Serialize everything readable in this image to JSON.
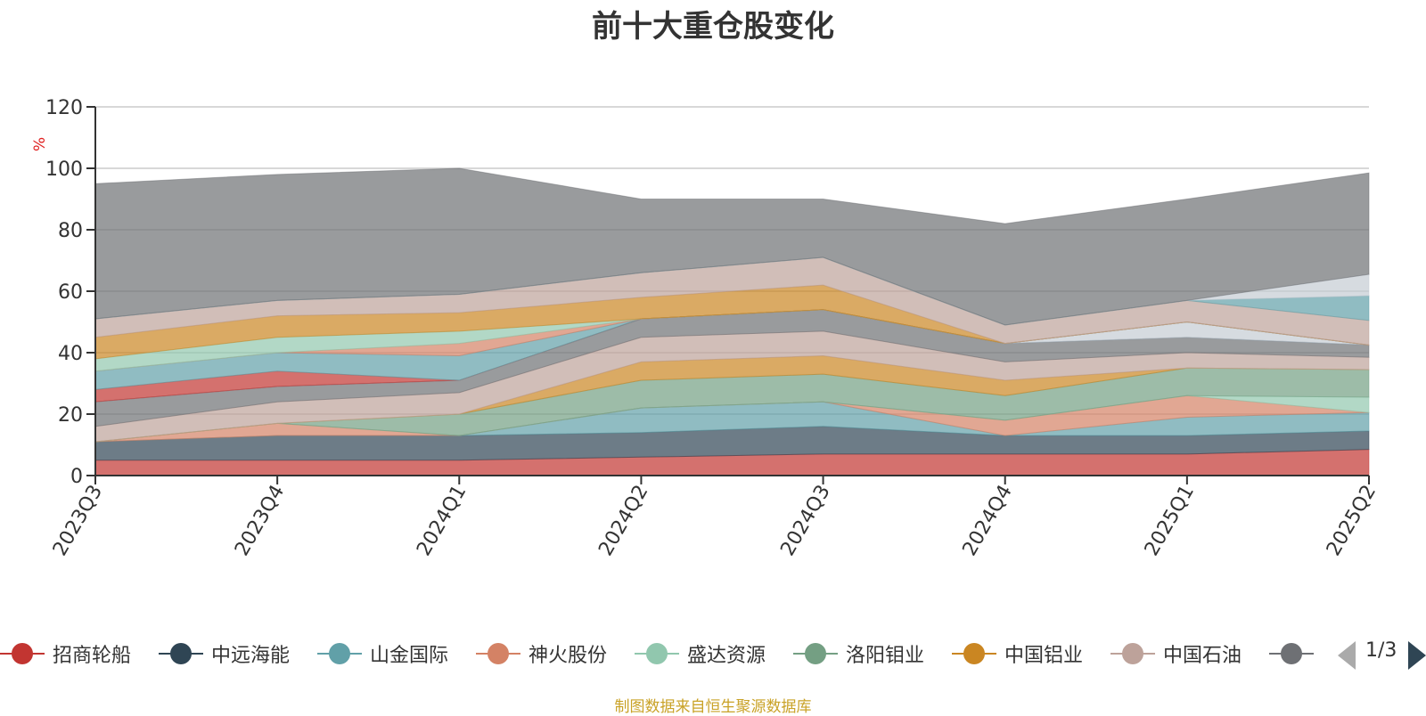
{
  "source_note": "制图数据来自恒生聚源数据库",
  "pager": {
    "text": "1/3"
  },
  "colors": {
    "axis": "#333333",
    "grid": "#cccccc",
    "unit_label": "#e02020"
  },
  "chart_data": {
    "type": "area",
    "stacked": true,
    "title": "前十大重仓股变化",
    "ylabel": "%",
    "ylim": [
      0,
      120
    ],
    "yticks": [
      0,
      20,
      40,
      60,
      80,
      100,
      120
    ],
    "grid": true,
    "legend_position": "bottom",
    "x": [
      "2023Q3",
      "2023Q4",
      "2024Q1",
      "2024Q2",
      "2024Q3",
      "2024Q4",
      "2025Q1",
      "2025Q2"
    ],
    "series": [
      {
        "name": "招商轮船",
        "color": "#c23531",
        "values": [
          5,
          5,
          5,
          6,
          7,
          7,
          7,
          8.5
        ]
      },
      {
        "name": "中远海能",
        "color": "#2f4554",
        "values": [
          6,
          8,
          8,
          8,
          9,
          6,
          6,
          6
        ]
      },
      {
        "name": "山金国际",
        "color": "#61a0a8",
        "values": [
          0,
          0,
          0,
          8,
          8,
          0,
          6,
          6
        ]
      },
      {
        "name": "神火股份",
        "color": "#d48265",
        "values": [
          0,
          4,
          0,
          0,
          0,
          5,
          7,
          0
        ]
      },
      {
        "name": "盛达资源",
        "color": "#91c7ae",
        "values": [
          0,
          0,
          0,
          0,
          0,
          0,
          0,
          5
        ]
      },
      {
        "name": "洛阳钼业",
        "color": "#749f83",
        "values": [
          0,
          0,
          7,
          9,
          9,
          8,
          9,
          9
        ]
      },
      {
        "name": "中国铝业",
        "color": "#ca8622",
        "values": [
          0,
          0,
          0,
          6,
          6,
          5,
          0,
          0
        ]
      },
      {
        "name": "中国石油",
        "color": "#bda29a",
        "values": [
          5,
          7,
          7,
          8,
          8,
          6,
          5,
          4
        ]
      },
      {
        "name": "",
        "color": "#6e7074",
        "values": [
          8,
          5,
          4,
          6,
          7,
          6,
          5,
          4
        ]
      },
      {
        "name": "",
        "color": "#546570",
        "values": [
          0,
          0,
          0,
          0,
          0,
          0,
          0,
          0
        ]
      },
      {
        "name": "",
        "color": "#c4ccd3",
        "values": [
          0,
          0,
          0,
          0,
          0,
          0,
          5,
          0
        ]
      },
      {
        "name": "",
        "color": "#c23531",
        "values": [
          4,
          5,
          0,
          0,
          0,
          0,
          0,
          0
        ]
      },
      {
        "name": "",
        "color": "#61a0a8",
        "values": [
          6,
          6,
          8,
          0,
          0,
          0,
          0,
          0
        ]
      },
      {
        "name": "",
        "color": "#d48265",
        "values": [
          0,
          0,
          4,
          0,
          0,
          0,
          0,
          0
        ]
      },
      {
        "name": "",
        "color": "#91c7ae",
        "values": [
          4,
          5,
          4,
          0,
          0,
          0,
          0,
          0
        ]
      },
      {
        "name": "",
        "color": "#ca8622",
        "values": [
          7,
          7,
          6,
          7,
          8,
          0,
          0,
          0
        ]
      },
      {
        "name": "",
        "color": "#bda29a",
        "values": [
          6,
          5,
          6,
          8,
          9,
          6,
          7,
          8
        ]
      },
      {
        "name": "",
        "color": "#61a0a8",
        "values": [
          0,
          0,
          0,
          0,
          0,
          0,
          0,
          8
        ]
      },
      {
        "name": "",
        "color": "#c4ccd3",
        "values": [
          0,
          0,
          0,
          0,
          0,
          0,
          0,
          7
        ]
      },
      {
        "name": "",
        "color": "#6e7074",
        "values": [
          44,
          41,
          41,
          24,
          19,
          33,
          33,
          33
        ]
      }
    ],
    "legend_visible": [
      "招商轮船",
      "中远海能",
      "山金国际",
      "神火股份",
      "盛达资源",
      "洛阳钼业",
      "中国铝业",
      "中国石油"
    ]
  }
}
